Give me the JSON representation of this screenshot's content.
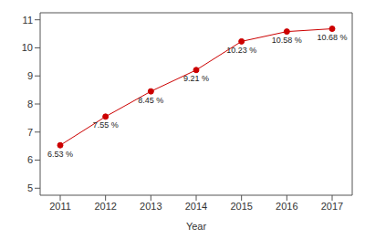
{
  "chart_data": {
    "type": "line",
    "x_label": "Year",
    "categories": [
      "2011",
      "2012",
      "2013",
      "2014",
      "2015",
      "2016",
      "2017"
    ],
    "values": [
      6.53,
      7.55,
      8.45,
      9.21,
      10.23,
      10.58,
      10.68
    ],
    "value_labels": [
      "6.53 %",
      "7.55 %",
      "8.45 %",
      "9.21 %",
      "10.23 %",
      "10.58 %",
      "10.68 %"
    ],
    "color": "#cc0000",
    "marker": "circle",
    "data_labels": true,
    "ylim": [
      4.75,
      11.25
    ],
    "yticks": [
      5,
      6,
      7,
      8,
      9,
      10,
      11
    ],
    "grid": false
  }
}
